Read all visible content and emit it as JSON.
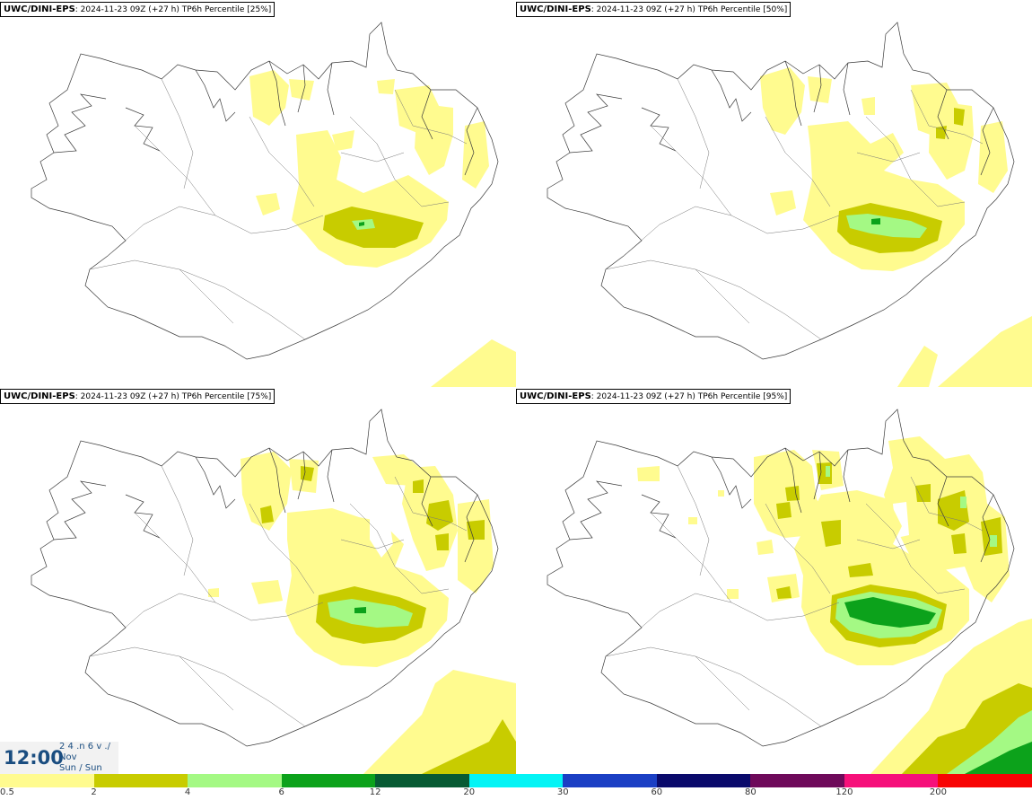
{
  "panels": [
    {
      "model": "UWC/DINI-EPS",
      "run_info": ": 2024-11-23 09Z (+27 h) ",
      "field": "TP6h Percentile [25%]"
    },
    {
      "model": "UWC/DINI-EPS",
      "run_info": ": 2024-11-23 09Z (+27 h) ",
      "field": "TP6h Percentile [50%]"
    },
    {
      "model": "UWC/DINI-EPS",
      "run_info": ": 2024-11-23 09Z (+27 h) ",
      "field": "TP6h Percentile [75%]"
    },
    {
      "model": "UWC/DINI-EPS",
      "run_info": ": 2024-11-23 09Z (+27 h) ",
      "field": "TP6h Percentile [95%]"
    }
  ],
  "legend": {
    "colors": [
      "#fffb8f",
      "#c8cc00",
      "#a4f984",
      "#0ca21b",
      "#075a33",
      "#04f4f5",
      "#1b3fc4",
      "#0a0a6b",
      "#6e0a5a",
      "#f6107a",
      "#f80404"
    ],
    "ticks": [
      "0.5",
      "2",
      "4",
      "6",
      "12",
      "20",
      "30",
      "60",
      "80",
      "120",
      "200"
    ]
  },
  "time": {
    "main": "12:00",
    "line1": "2 4 .n 6 v ./",
    "line2": "Nov",
    "line3": "Sun / Sun"
  }
}
